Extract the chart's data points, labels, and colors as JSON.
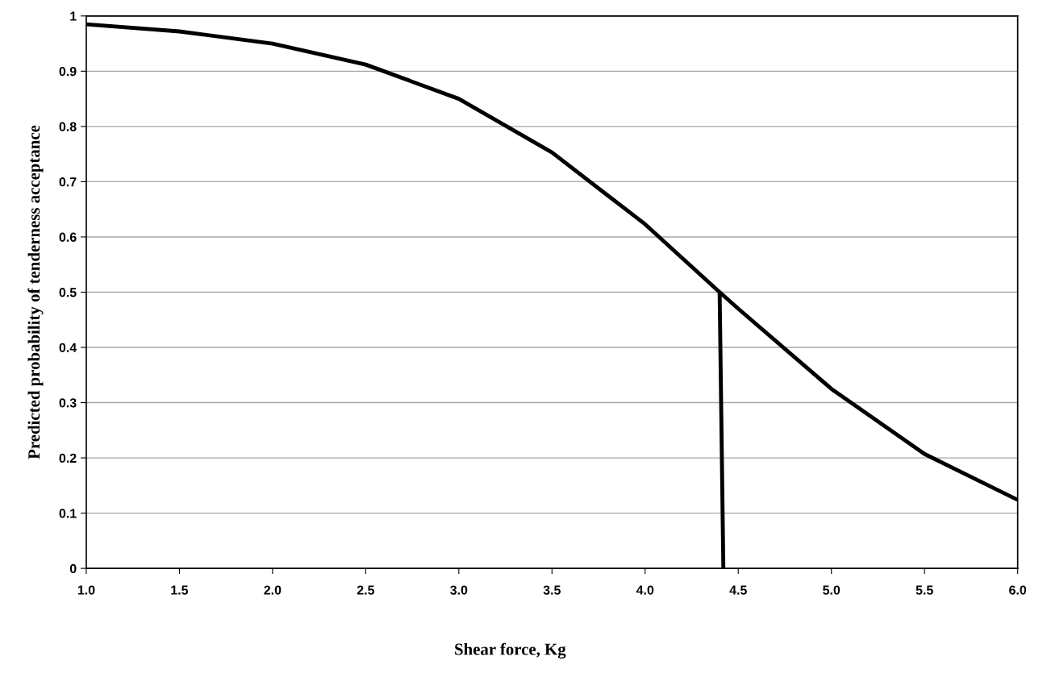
{
  "chart_data": {
    "type": "line",
    "xlabel": "Shear force, Kg",
    "ylabel": "Predicted probability of tenderness acceptance",
    "series": [
      {
        "color": "#000000",
        "x": [
          1.0,
          1.5,
          2.0,
          2.5,
          3.0,
          3.5,
          4.0,
          4.4,
          4.5,
          5.0,
          5.5,
          6.0
        ],
        "values": [
          0.985,
          0.972,
          0.95,
          0.912,
          0.85,
          0.753,
          0.623,
          0.5,
          0.47,
          0.325,
          0.207,
          0.124
        ]
      },
      {
        "color": "#000000",
        "x": [
          4.4,
          4.42
        ],
        "values": [
          0.5,
          0
        ]
      }
    ],
    "xlim": [
      1.0,
      6.0
    ],
    "xticks": [
      {
        "value": 1.0,
        "label": "1.0"
      },
      {
        "value": 1.5,
        "label": "1.5"
      },
      {
        "value": 2.0,
        "label": "2.0"
      },
      {
        "value": 2.5,
        "label": "2.5"
      },
      {
        "value": 3.0,
        "label": "3.0"
      },
      {
        "value": 3.5,
        "label": "3.5"
      },
      {
        "value": 4.0,
        "label": "4.0"
      },
      {
        "value": 4.5,
        "label": "4.5"
      },
      {
        "value": 5.0,
        "label": "5.0"
      },
      {
        "value": 5.5,
        "label": "5.5"
      },
      {
        "value": 6.0,
        "label": "6.0"
      }
    ],
    "ylim": [
      0,
      1
    ],
    "yticks": [
      0,
      0.1,
      0.2,
      0.3,
      0.4,
      0.5,
      0.6,
      0.7,
      0.8,
      0.9,
      1
    ],
    "grid": "y",
    "line_style": "solid"
  }
}
